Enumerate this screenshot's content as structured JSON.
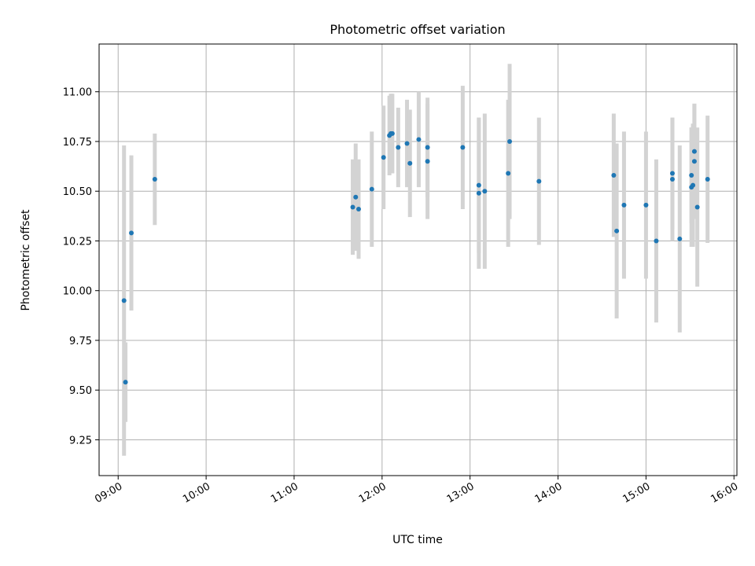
{
  "chart_data": {
    "type": "scatter",
    "title": "Photometric offset variation",
    "xlabel": "UTC time",
    "ylabel": "Photometric offset",
    "grid": true,
    "xlim": [
      "08:47",
      "16:02"
    ],
    "ylim": [
      9.07,
      11.24
    ],
    "xticks": [
      "09:00",
      "10:00",
      "11:00",
      "12:00",
      "13:00",
      "14:00",
      "15:00",
      "16:00"
    ],
    "yticks": [
      "9.25",
      "9.50",
      "9.75",
      "10.00",
      "10.25",
      "10.50",
      "10.75",
      "11.00"
    ],
    "colors": {
      "marker": "#1f77b4",
      "errorbar": "#d3d3d3",
      "grid": "#b0b0b0"
    },
    "points": [
      {
        "x": "09:04",
        "y": 9.95,
        "err": 0.78
      },
      {
        "x": "09:05",
        "y": 9.54,
        "err": 0.2
      },
      {
        "x": "09:09",
        "y": 10.29,
        "err": 0.39
      },
      {
        "x": "09:25",
        "y": 10.56,
        "err": 0.23
      },
      {
        "x": "11:40",
        "y": 10.42,
        "err": 0.24
      },
      {
        "x": "11:42",
        "y": 10.47,
        "err": 0.27
      },
      {
        "x": "11:44",
        "y": 10.41,
        "err": 0.25
      },
      {
        "x": "11:53",
        "y": 10.51,
        "err": 0.29
      },
      {
        "x": "12:01",
        "y": 10.67,
        "err": 0.26
      },
      {
        "x": "12:05",
        "y": 10.78,
        "err": 0.2
      },
      {
        "x": "12:06",
        "y": 10.79,
        "err": 0.2
      },
      {
        "x": "12:07",
        "y": 10.79,
        "err": 0.2
      },
      {
        "x": "12:11",
        "y": 10.72,
        "err": 0.2
      },
      {
        "x": "12:17",
        "y": 10.74,
        "err": 0.22
      },
      {
        "x": "12:19",
        "y": 10.64,
        "err": 0.27
      },
      {
        "x": "12:25",
        "y": 10.76,
        "err": 0.24
      },
      {
        "x": "12:31",
        "y": 10.72,
        "err": 0.25
      },
      {
        "x": "12:31",
        "y": 10.65,
        "err": 0.29
      },
      {
        "x": "12:55",
        "y": 10.72,
        "err": 0.31
      },
      {
        "x": "13:06",
        "y": 10.53,
        "err": 0.34
      },
      {
        "x": "13:06",
        "y": 10.49,
        "err": 0.38
      },
      {
        "x": "13:10",
        "y": 10.5,
        "err": 0.39
      },
      {
        "x": "13:26",
        "y": 10.59,
        "err": 0.37
      },
      {
        "x": "13:27",
        "y": 10.75,
        "err": 0.39
      },
      {
        "x": "13:47",
        "y": 10.55,
        "err": 0.32
      },
      {
        "x": "14:38",
        "y": 10.58,
        "err": 0.31
      },
      {
        "x": "14:40",
        "y": 10.3,
        "err": 0.44
      },
      {
        "x": "14:45",
        "y": 10.43,
        "err": 0.37
      },
      {
        "x": "15:00",
        "y": 10.43,
        "err": 0.37
      },
      {
        "x": "15:07",
        "y": 10.25,
        "err": 0.41
      },
      {
        "x": "15:18",
        "y": 10.59,
        "err": 0.28
      },
      {
        "x": "15:18",
        "y": 10.56,
        "err": 0.31
      },
      {
        "x": "15:23",
        "y": 10.26,
        "err": 0.47
      },
      {
        "x": "15:31",
        "y": 10.58,
        "err": 0.24
      },
      {
        "x": "15:31",
        "y": 10.52,
        "err": 0.3
      },
      {
        "x": "15:32",
        "y": 10.53,
        "err": 0.31
      },
      {
        "x": "15:33",
        "y": 10.7,
        "err": 0.24
      },
      {
        "x": "15:33",
        "y": 10.65,
        "err": 0.29
      },
      {
        "x": "15:35",
        "y": 10.42,
        "err": 0.4
      },
      {
        "x": "15:42",
        "y": 10.56,
        "err": 0.32
      }
    ]
  }
}
